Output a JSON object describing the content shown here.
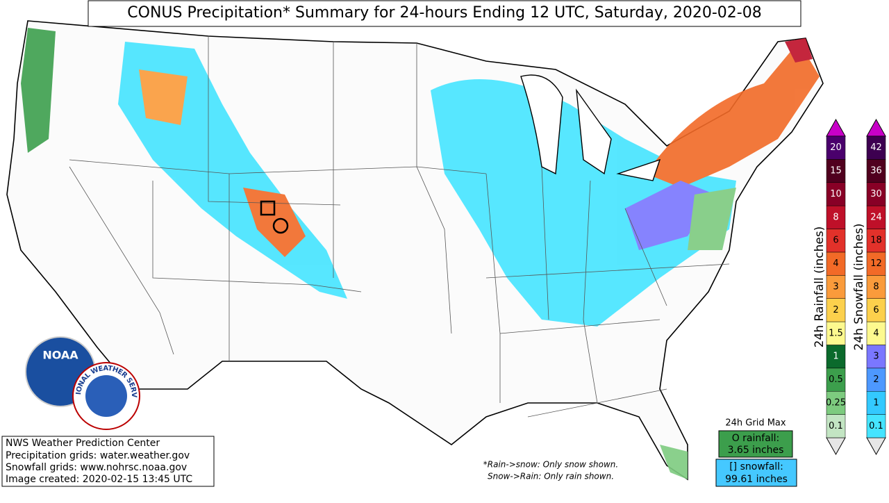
{
  "title": "CONUS Precipitation* Summary for 24-hours Ending 12 UTC, Saturday, 2020-02-08",
  "credits": [
    "NWS Weather Prediction Center",
    "Precipitation grids: water.weather.gov",
    "Snowfall grids: www.nohrsc.noaa.gov",
    "Image created: 2020-02-15 13:45 UTC"
  ],
  "notes": [
    "*Rain->snow: Only snow shown.",
    "Snow->Rain: Only rain shown."
  ],
  "grid_max": {
    "title": "24h Grid Max",
    "rainfall": [
      "O rainfall:",
      "3.65 inches"
    ],
    "snowfall": [
      "[] snowfall:",
      "99.61 inches"
    ]
  },
  "logos": {
    "noaa": "NOAA",
    "nws": "NATIONAL WEATHER SERVICE"
  },
  "rain_scale": {
    "label": "24h Rainfall (inches)",
    "over_color": "#c800c8",
    "under_color": "#e6e6e6",
    "levels": [
      {
        "label": "0.1",
        "color": "#c3e5c3"
      },
      {
        "label": "0.25",
        "color": "#7dcb7f"
      },
      {
        "label": "0.5",
        "color": "#3c9e4c"
      },
      {
        "label": "1",
        "color": "#0b6a2c"
      },
      {
        "label": "1.5",
        "color": "#fdf98f"
      },
      {
        "label": "2",
        "color": "#fcd04c"
      },
      {
        "label": "3",
        "color": "#fa9b3b"
      },
      {
        "label": "4",
        "color": "#f26a27"
      },
      {
        "label": "6",
        "color": "#e2312a"
      },
      {
        "label": "8",
        "color": "#bf1029"
      },
      {
        "label": "10",
        "color": "#880026"
      },
      {
        "label": "15",
        "color": "#50001e"
      },
      {
        "label": "20",
        "color": "#4a006c"
      }
    ]
  },
  "snow_scale": {
    "label": "24h Snowfall (inches)",
    "over_color": "#c800c8",
    "under_color": "#e6e6e6",
    "levels": [
      {
        "label": "0.1",
        "color": "#45e4ff"
      },
      {
        "label": "1",
        "color": "#33c9ff"
      },
      {
        "label": "2",
        "color": "#4d98ff"
      },
      {
        "label": "3",
        "color": "#7a77ff"
      },
      {
        "label": "4",
        "color": "#fdf98f"
      },
      {
        "label": "6",
        "color": "#fcd04c"
      },
      {
        "label": "8",
        "color": "#fa9b3b"
      },
      {
        "label": "12",
        "color": "#f26a27"
      },
      {
        "label": "18",
        "color": "#e2312a"
      },
      {
        "label": "24",
        "color": "#bf1029"
      },
      {
        "label": "30",
        "color": "#880026"
      },
      {
        "label": "36",
        "color": "#50001e"
      },
      {
        "label": "42",
        "color": "#3d0050"
      }
    ]
  }
}
